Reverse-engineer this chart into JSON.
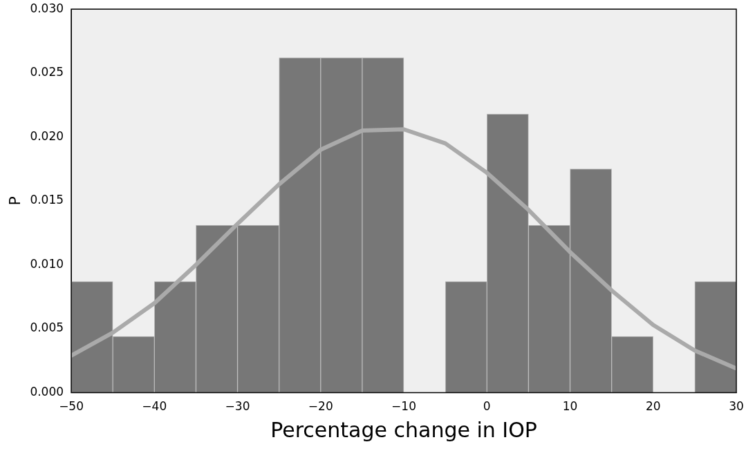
{
  "chart_data": {
    "type": "histogram",
    "xlabel": "Percentage change in IOP",
    "ylabel": "P",
    "bins": [
      -50,
      -45,
      -40,
      -35,
      -30,
      -25,
      -20,
      -15,
      -10,
      -5,
      0,
      5,
      10,
      15,
      20,
      25,
      30
    ],
    "values": [
      0.0087,
      0.0044,
      0.0087,
      0.0131,
      0.0131,
      0.0262,
      0.0262,
      0.0262,
      0,
      0.0087,
      0.0218,
      0.0131,
      0.0175,
      0.0044,
      0,
      0.0087
    ],
    "color": "#777777",
    "series": [
      {
        "type": "line",
        "color": "#aaaaaa",
        "x": [
          -50,
          -45,
          -40,
          -35,
          -30,
          -25,
          -20,
          -15,
          -10,
          -5,
          0,
          5,
          10,
          15,
          20,
          25,
          30
        ],
        "values": [
          0.0029,
          0.0047,
          0.007,
          0.01,
          0.0132,
          0.0163,
          0.019,
          0.0205,
          0.0206,
          0.0195,
          0.0172,
          0.0143,
          0.011,
          0.008,
          0.0053,
          0.0033,
          0.0019
        ]
      }
    ],
    "xlim": [
      -50,
      30
    ],
    "xticks": [
      {
        "value": -50,
        "label": "−50"
      },
      {
        "value": -40,
        "label": "−40"
      },
      {
        "value": -30,
        "label": "−30"
      },
      {
        "value": -20,
        "label": "−20"
      },
      {
        "value": -10,
        "label": "−10"
      },
      0,
      10,
      20,
      30
    ],
    "ylim": [
      0,
      0.03
    ],
    "yticks": [
      {
        "value": 0,
        "label": "0.000"
      },
      {
        "value": 0.005,
        "label": "0.005"
      },
      {
        "value": 0.01,
        "label": "0.010"
      },
      {
        "value": 0.015,
        "label": "0.015"
      },
      {
        "value": 0.02,
        "label": "0.020"
      },
      {
        "value": 0.025,
        "label": "0.025"
      },
      {
        "value": 0.03,
        "label": "0.030"
      }
    ],
    "grid": false,
    "legend": false,
    "marker": "none",
    "line_style": "solid"
  }
}
